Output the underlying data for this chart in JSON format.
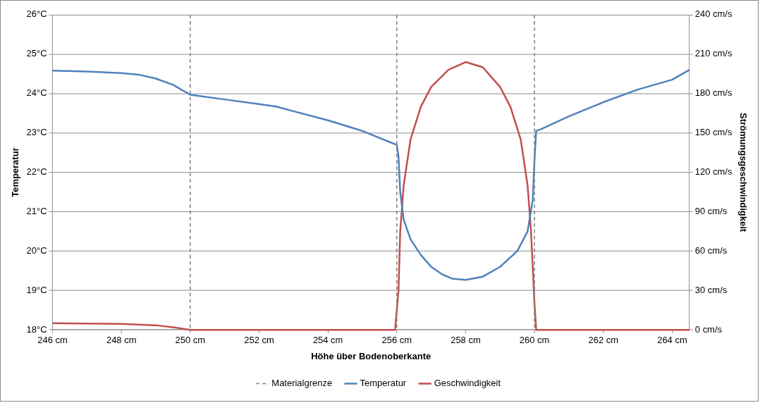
{
  "chart_data": {
    "type": "line",
    "xlabel": "Höhe über Bodenoberkante",
    "ylabel": "Temperatur",
    "y2label": "Strömungsgeschwindigkeit",
    "xlim": [
      246,
      264.5
    ],
    "xticks": [
      {
        "value": 246,
        "label": "246 cm"
      },
      {
        "value": 248,
        "label": "248 cm"
      },
      {
        "value": 250,
        "label": "250 cm"
      },
      {
        "value": 252,
        "label": "252 cm"
      },
      {
        "value": 254,
        "label": "254 cm"
      },
      {
        "value": 256,
        "label": "256 cm"
      },
      {
        "value": 258,
        "label": "258 cm"
      },
      {
        "value": 260,
        "label": "260 cm"
      },
      {
        "value": 262,
        "label": "262 cm"
      },
      {
        "value": 264,
        "label": "264 cm"
      }
    ],
    "ylim": [
      18,
      26
    ],
    "yticks": [
      {
        "value": 18,
        "label": "18°C"
      },
      {
        "value": 19,
        "label": "19°C"
      },
      {
        "value": 20,
        "label": "20°C"
      },
      {
        "value": 21,
        "label": "21°C"
      },
      {
        "value": 22,
        "label": "22°C"
      },
      {
        "value": 23,
        "label": "23°C"
      },
      {
        "value": 24,
        "label": "24°C"
      },
      {
        "value": 25,
        "label": "25°C"
      },
      {
        "value": 26,
        "label": "26°C"
      }
    ],
    "y2lim": [
      0,
      240
    ],
    "y2ticks": [
      {
        "value": 0,
        "label": "0 cm/s"
      },
      {
        "value": 30,
        "label": "30 cm/s"
      },
      {
        "value": 60,
        "label": "60 cm/s"
      },
      {
        "value": 90,
        "label": "90 cm/s"
      },
      {
        "value": 120,
        "label": "120 cm/s"
      },
      {
        "value": 150,
        "label": "150 cm/s"
      },
      {
        "value": 180,
        "label": "180 cm/s"
      },
      {
        "value": 210,
        "label": "210 cm/s"
      },
      {
        "value": 240,
        "label": "240 cm/s"
      }
    ],
    "grid": "y",
    "legend": "bottom",
    "marker": "none",
    "line_style": "solid",
    "ref_lines": [
      {
        "axis": "x",
        "value": 250,
        "label": "Materialgrenze",
        "color": "#7f7f7f",
        "line_style": "dashed"
      },
      {
        "axis": "x",
        "value": 256,
        "color": "#7f7f7f",
        "line_style": "dashed"
      },
      {
        "axis": "x",
        "value": 260,
        "color": "#7f7f7f",
        "line_style": "dashed"
      }
    ],
    "series": [
      {
        "name": "Temperatur",
        "color": "#4f81bd",
        "x": [
          246,
          247,
          248,
          248.5,
          249,
          249.5,
          250,
          251,
          252,
          252.5,
          253,
          254,
          255,
          255.9,
          256,
          256.05,
          256.1,
          256.2,
          256.4,
          256.7,
          257,
          257.3,
          257.6,
          258,
          258.5,
          259,
          259.5,
          259.8,
          259.95,
          260,
          260.05,
          260.2,
          261,
          262,
          263,
          264,
          264.5
        ],
        "values": [
          24.58,
          24.56,
          24.52,
          24.48,
          24.38,
          24.22,
          23.97,
          23.85,
          23.73,
          23.67,
          23.55,
          23.32,
          23.05,
          22.73,
          22.7,
          22.4,
          21.5,
          20.8,
          20.3,
          19.9,
          19.6,
          19.42,
          19.3,
          19.27,
          19.35,
          19.6,
          20.0,
          20.5,
          21.3,
          22.3,
          23.05,
          23.1,
          23.42,
          23.78,
          24.1,
          24.35,
          24.6
        ]
      },
      {
        "name": "Geschwindigkeit",
        "color": "#c0504d",
        "axis": "y2",
        "x": [
          246,
          248,
          249,
          249.5,
          250,
          255.95,
          256.05,
          256.1,
          256.2,
          256.4,
          256.7,
          257,
          257.5,
          258,
          258.5,
          259,
          259.3,
          259.6,
          259.8,
          259.9,
          260,
          260.05,
          264.5
        ],
        "values": [
          5,
          4.5,
          3.5,
          2,
          0,
          0,
          30,
          75,
          110,
          145,
          170,
          185,
          198,
          204,
          200,
          185,
          170,
          145,
          110,
          75,
          20,
          0,
          0
        ]
      }
    ]
  }
}
